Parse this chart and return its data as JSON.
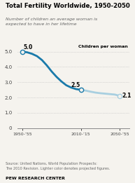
{
  "title": "Total Fertility Worldwide, 1950-2050",
  "subtitle": "Number of children an average woman is\nexpected to have in her lifetime",
  "ylabel_text": "Children per woman",
  "source_text": "Source: United Nations, World Population Prospects:\nThe 2010 Revision. Lighter color denotes projected figures.",
  "footer_text": "PEW RESEARCH CENTER",
  "historical_color": "#1a7aaa",
  "projected_color": "#a8cfe0",
  "bg_color": "#f5f3ee",
  "yticks": [
    0,
    1.0,
    2.0,
    3.0,
    4.0,
    5.0
  ],
  "xtick_labels": [
    "1950-’55",
    "2010-’15",
    "2050-’55"
  ],
  "xtick_positions": [
    1950,
    2010,
    2050
  ],
  "hist_x": [
    1950,
    1955,
    1960,
    1965,
    1970,
    1975,
    1980,
    1985,
    1990,
    1995,
    2000,
    2005,
    2010
  ],
  "hist_y": [
    5.0,
    4.95,
    4.85,
    4.7,
    4.45,
    4.1,
    3.7,
    3.35,
    3.05,
    2.8,
    2.65,
    2.55,
    2.5
  ],
  "proj_x": [
    2010,
    2015,
    2020,
    2025,
    2030,
    2035,
    2040,
    2045,
    2050
  ],
  "proj_y": [
    2.5,
    2.45,
    2.38,
    2.32,
    2.28,
    2.25,
    2.22,
    2.19,
    2.1
  ],
  "ann_1950_x": 1950,
  "ann_1950_y": 5.0,
  "ann_1950_label": "5.0",
  "ann_2010_x": 2010,
  "ann_2010_y": 2.5,
  "ann_2010_label": "2.5",
  "ann_2050_x": 2050,
  "ann_2050_y": 2.1,
  "ann_2050_label": "2.1",
  "xlim": [
    1945,
    2060
  ],
  "ylim": [
    0,
    5.5
  ]
}
